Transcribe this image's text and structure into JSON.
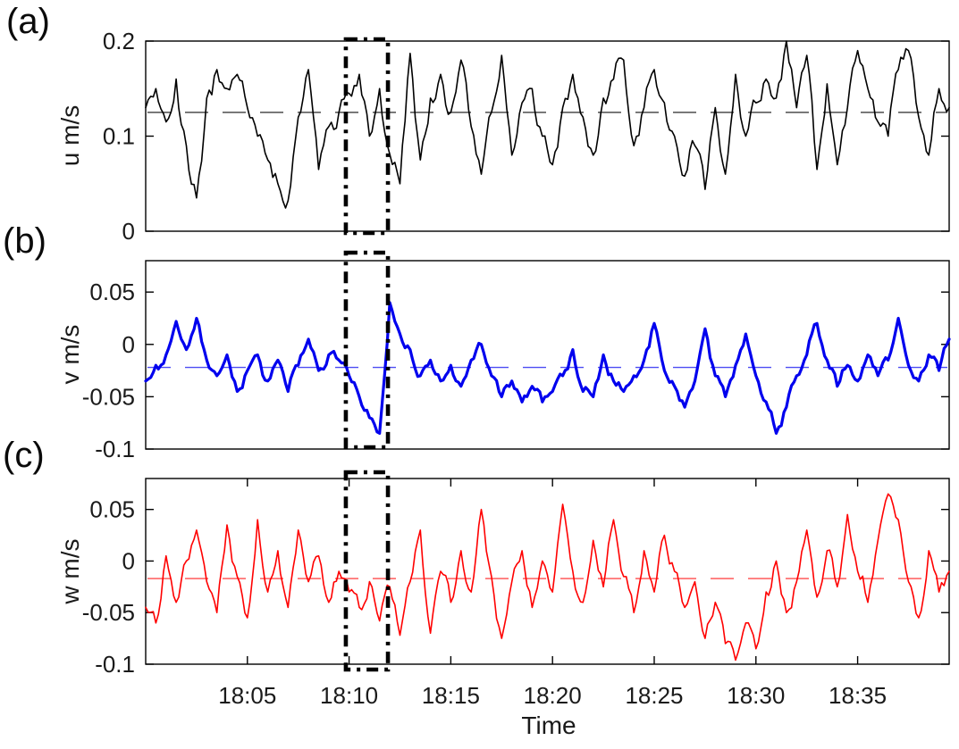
{
  "figure": {
    "panel_labels": [
      "(a)",
      "(b)",
      "(c)"
    ],
    "background_color": "#ffffff",
    "text_color": "#1a1a1a"
  },
  "x_axis": {
    "label": "Time",
    "tick_labels": [
      "18:05",
      "18:10",
      "18:15",
      "18:20",
      "18:25",
      "18:30",
      "18:35"
    ],
    "tick_minutes_after_1800": [
      5,
      10,
      15,
      20,
      25,
      30,
      35
    ],
    "range_minutes_after_1800": [
      0,
      39.5
    ],
    "start_time": "18:00"
  },
  "highlight_window": {
    "description": "dash-dot black rectangle drawn across all three panels",
    "start_time": "18:09.8",
    "end_time": "18:11.9",
    "start_minutes": 9.84,
    "end_minutes": 11.91,
    "color": "#000000",
    "line_style": "dash-dot"
  },
  "chart_data": [
    {
      "type": "line",
      "panel": "(a)",
      "ylabel": "u m/s",
      "series_name": "u",
      "color": "#000000",
      "line_width": 1.6,
      "ylim": [
        0,
        0.2
      ],
      "yticks": [
        0,
        0.1,
        0.2
      ],
      "ytick_labels": [
        "0",
        "0.1",
        "0.2"
      ],
      "mean": 0.125,
      "mean_line_style": "dashed",
      "x_start_minutes": 0,
      "x_step_minutes": 0.5,
      "values": [
        0.13,
        0.15,
        0.115,
        0.16,
        0.09,
        0.035,
        0.14,
        0.17,
        0.15,
        0.165,
        0.13,
        0.1,
        0.075,
        0.05,
        0.032,
        0.12,
        0.17,
        0.065,
        0.11,
        0.125,
        0.145,
        0.165,
        0.1,
        0.15,
        0.081,
        0.05,
        0.187,
        0.075,
        0.14,
        0.165,
        0.125,
        0.18,
        0.11,
        0.06,
        0.125,
        0.185,
        0.08,
        0.135,
        0.15,
        0.1,
        0.07,
        0.13,
        0.165,
        0.12,
        0.08,
        0.14,
        0.16,
        0.18,
        0.09,
        0.13,
        0.17,
        0.135,
        0.1,
        0.058,
        0.09,
        0.044,
        0.13,
        0.06,
        0.165,
        0.1,
        0.135,
        0.16,
        0.14,
        0.2,
        0.13,
        0.185,
        0.065,
        0.155,
        0.07,
        0.13,
        0.19,
        0.15,
        0.115,
        0.1,
        0.17,
        0.19,
        0.12,
        0.08,
        0.15,
        0.13
      ],
      "render": {
        "seed": 13,
        "jitter_amps": [
          0.014,
          0.008
        ],
        "clamp": [
          0.003,
          0.2
        ]
      }
    },
    {
      "type": "line",
      "panel": "(b)",
      "ylabel": "v m/s",
      "series_name": "v",
      "color": "#0000ee",
      "line_width": 3.2,
      "ylim": [
        -0.1,
        0.08
      ],
      "yticks": [
        0.05,
        0,
        -0.05,
        -0.1
      ],
      "ytick_labels": [
        "0.05",
        "0",
        "-0.05",
        "-0.1"
      ],
      "mean": -0.022,
      "mean_line_style": "dashed",
      "x_start_minutes": 0,
      "x_step_minutes": 0.5,
      "values": [
        -0.035,
        -0.02,
        -0.01,
        0.022,
        -0.005,
        0.025,
        -0.015,
        -0.03,
        -0.01,
        -0.045,
        -0.025,
        -0.01,
        -0.035,
        -0.015,
        -0.045,
        -0.02,
        0.005,
        -0.025,
        -0.01,
        -0.015,
        -0.03,
        -0.05,
        -0.07,
        -0.085,
        0.04,
        0.01,
        -0.005,
        -0.03,
        -0.015,
        -0.035,
        -0.02,
        -0.04,
        -0.015,
        0.0,
        -0.03,
        -0.05,
        -0.035,
        -0.055,
        -0.04,
        -0.055,
        -0.045,
        -0.03,
        -0.005,
        -0.045,
        -0.05,
        -0.01,
        -0.035,
        -0.045,
        -0.03,
        -0.015,
        0.02,
        -0.025,
        -0.04,
        -0.06,
        -0.035,
        0.015,
        -0.03,
        -0.05,
        -0.02,
        0.01,
        -0.03,
        -0.055,
        -0.085,
        -0.06,
        -0.03,
        -0.01,
        0.02,
        -0.015,
        -0.04,
        -0.02,
        -0.035,
        -0.01,
        -0.03,
        -0.015,
        0.025,
        -0.02,
        -0.035,
        -0.01,
        -0.025,
        0.005
      ],
      "render": {
        "seed": 29,
        "jitter_amps": [
          0.007,
          0.004
        ],
        "clamp": [
          -0.099,
          0.078
        ]
      }
    },
    {
      "type": "line",
      "panel": "(c)",
      "ylabel": "w m/s",
      "series_name": "w",
      "color": "#ff0000",
      "line_width": 1.6,
      "ylim": [
        -0.1,
        0.08
      ],
      "yticks": [
        0.05,
        0,
        -0.05,
        -0.1
      ],
      "ytick_labels": [
        "0.05",
        "0",
        "-0.05",
        "-0.1"
      ],
      "mean": -0.017,
      "mean_line_style": "dashed",
      "x_start_minutes": 0,
      "x_step_minutes": 0.5,
      "values": [
        -0.045,
        -0.06,
        0.005,
        -0.04,
        0.0,
        0.03,
        -0.02,
        -0.05,
        0.035,
        -0.015,
        -0.055,
        0.04,
        -0.03,
        0.01,
        -0.045,
        0.03,
        -0.02,
        0.005,
        -0.04,
        -0.01,
        -0.03,
        -0.045,
        -0.02,
        -0.058,
        -0.025,
        -0.072,
        -0.02,
        0.03,
        -0.07,
        -0.01,
        -0.04,
        0.01,
        -0.03,
        0.05,
        -0.015,
        -0.075,
        -0.02,
        0.01,
        -0.045,
        0.0,
        -0.03,
        0.055,
        -0.01,
        -0.04,
        0.02,
        -0.025,
        0.04,
        -0.015,
        -0.05,
        0.01,
        -0.03,
        0.025,
        -0.01,
        -0.045,
        -0.02,
        -0.075,
        -0.04,
        -0.08,
        -0.096,
        -0.06,
        -0.085,
        -0.03,
        0.0,
        -0.05,
        -0.02,
        0.03,
        -0.035,
        0.01,
        -0.025,
        0.045,
        -0.01,
        -0.04,
        0.02,
        0.065,
        0.04,
        -0.02,
        -0.055,
        0.01,
        -0.03,
        -0.01
      ],
      "render": {
        "seed": 47,
        "jitter_amps": [
          0.011,
          0.006
        ],
        "clamp": [
          -0.099,
          0.078
        ]
      }
    }
  ]
}
